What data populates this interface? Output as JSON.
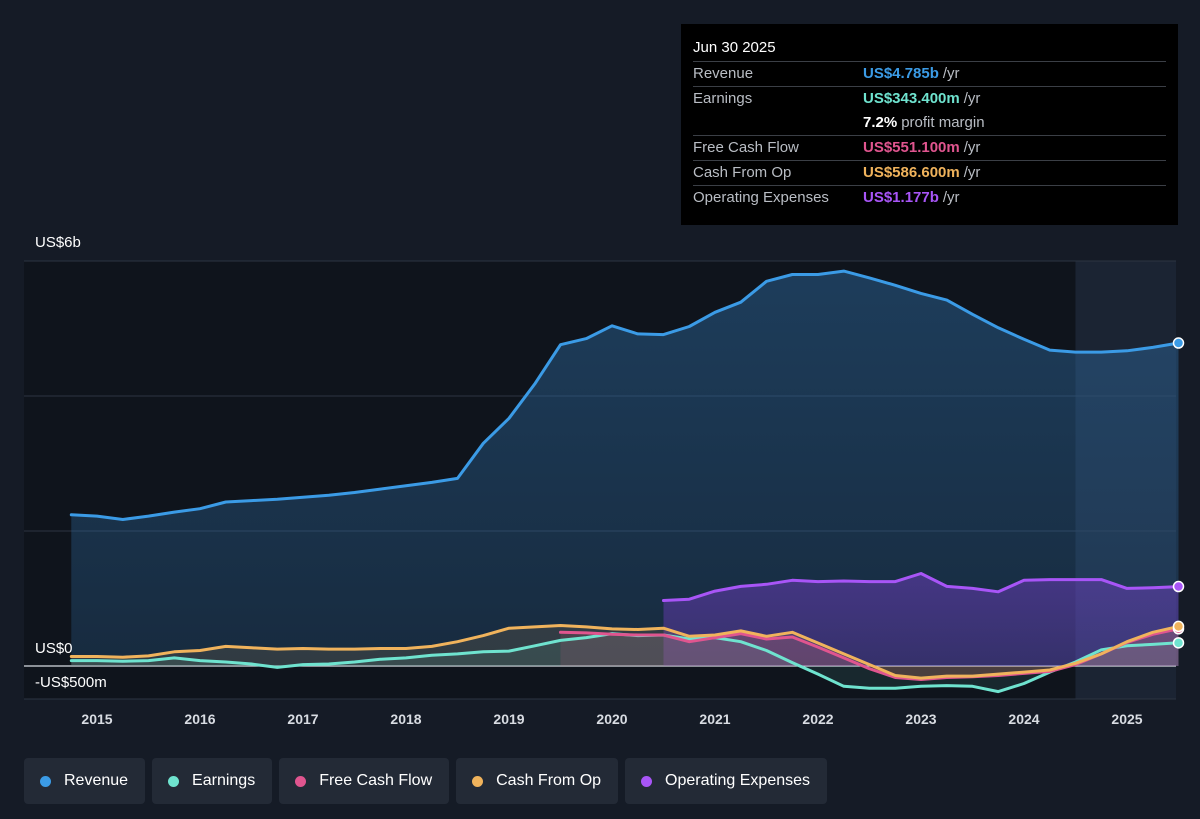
{
  "tooltip": {
    "date": "Jun 30 2025",
    "rows": [
      {
        "label": "Revenue",
        "value": "US$4.785b",
        "unit": "/yr",
        "color": "#3b9be6"
      },
      {
        "label": "Earnings",
        "value": "US$343.400m",
        "unit": "/yr",
        "color": "#6fe3cf"
      },
      {
        "label": "",
        "value": "7.2%",
        "unit": "profit margin",
        "color": "#ffffff"
      },
      {
        "label": "Free Cash Flow",
        "value": "US$551.100m",
        "unit": "/yr",
        "color": "#e0558f"
      },
      {
        "label": "Cash From Op",
        "value": "US$586.600m",
        "unit": "/yr",
        "color": "#f0b35c"
      },
      {
        "label": "Operating Expenses",
        "value": "US$1.177b",
        "unit": "/yr",
        "color": "#a855f7"
      }
    ]
  },
  "legend": [
    {
      "label": "Revenue",
      "color": "#3b9be6"
    },
    {
      "label": "Earnings",
      "color": "#6fe3cf"
    },
    {
      "label": "Free Cash Flow",
      "color": "#e0558f"
    },
    {
      "label": "Cash From Op",
      "color": "#f0b35c"
    },
    {
      "label": "Operating Expenses",
      "color": "#a855f7"
    }
  ],
  "chart_data": {
    "type": "area",
    "y_unit_labels": {
      "top": "US$6b",
      "zero": "US$0",
      "bottom": "-US$500m"
    },
    "ylim": [
      -500,
      6000
    ],
    "xlim": [
      2014.5,
      2025.5
    ],
    "x_tick_labels": [
      "2015",
      "2016",
      "2017",
      "2018",
      "2019",
      "2020",
      "2021",
      "2022",
      "2023",
      "2024",
      "2025"
    ],
    "x_ticks": [
      2015,
      2016,
      2017,
      2018,
      2019,
      2020,
      2021,
      2022,
      2023,
      2024,
      2025
    ],
    "gridlines": [
      6000,
      4000,
      2000,
      0
    ],
    "forecast_start": 2024.5,
    "series": [
      {
        "name": "Revenue",
        "color": "#3b9be6",
        "points": [
          [
            2014.75,
            2240
          ],
          [
            2015.0,
            2220
          ],
          [
            2015.25,
            2170
          ],
          [
            2015.5,
            2220
          ],
          [
            2015.75,
            2280
          ],
          [
            2016.0,
            2330
          ],
          [
            2016.25,
            2430
          ],
          [
            2016.5,
            2450
          ],
          [
            2016.75,
            2470
          ],
          [
            2017.0,
            2500
          ],
          [
            2017.25,
            2530
          ],
          [
            2017.5,
            2570
          ],
          [
            2017.75,
            2620
          ],
          [
            2018.0,
            2670
          ],
          [
            2018.25,
            2720
          ],
          [
            2018.5,
            2780
          ],
          [
            2018.75,
            3300
          ],
          [
            2019.0,
            3670
          ],
          [
            2019.25,
            4180
          ],
          [
            2019.5,
            4760
          ],
          [
            2019.75,
            4850
          ],
          [
            2020.0,
            5040
          ],
          [
            2020.25,
            4920
          ],
          [
            2020.5,
            4910
          ],
          [
            2020.75,
            5030
          ],
          [
            2021.0,
            5240
          ],
          [
            2021.25,
            5390
          ],
          [
            2021.5,
            5700
          ],
          [
            2021.75,
            5800
          ],
          [
            2022.0,
            5800
          ],
          [
            2022.25,
            5850
          ],
          [
            2022.5,
            5750
          ],
          [
            2022.75,
            5640
          ],
          [
            2023.0,
            5520
          ],
          [
            2023.25,
            5420
          ],
          [
            2023.5,
            5210
          ],
          [
            2023.75,
            5010
          ],
          [
            2024.0,
            4840
          ],
          [
            2024.25,
            4680
          ],
          [
            2024.5,
            4650
          ],
          [
            2024.75,
            4650
          ],
          [
            2025.0,
            4670
          ],
          [
            2025.25,
            4720
          ],
          [
            2025.5,
            4785
          ]
        ]
      },
      {
        "name": "Earnings",
        "color": "#6fe3cf",
        "points": [
          [
            2014.75,
            80
          ],
          [
            2015.0,
            80
          ],
          [
            2015.25,
            70
          ],
          [
            2015.5,
            80
          ],
          [
            2015.75,
            120
          ],
          [
            2016.0,
            80
          ],
          [
            2016.25,
            60
          ],
          [
            2016.5,
            30
          ],
          [
            2016.75,
            -20
          ],
          [
            2017.0,
            20
          ],
          [
            2017.25,
            30
          ],
          [
            2017.5,
            60
          ],
          [
            2017.75,
            100
          ],
          [
            2018.0,
            120
          ],
          [
            2018.25,
            160
          ],
          [
            2018.5,
            180
          ],
          [
            2018.75,
            210
          ],
          [
            2019.0,
            220
          ],
          [
            2019.25,
            300
          ],
          [
            2019.5,
            380
          ],
          [
            2019.75,
            420
          ],
          [
            2020.0,
            480
          ],
          [
            2020.25,
            450
          ],
          [
            2020.5,
            460
          ],
          [
            2020.75,
            400
          ],
          [
            2021.0,
            420
          ],
          [
            2021.25,
            360
          ],
          [
            2021.5,
            230
          ],
          [
            2021.75,
            50
          ],
          [
            2022.0,
            -120
          ],
          [
            2022.25,
            -300
          ],
          [
            2022.5,
            -330
          ],
          [
            2022.75,
            -330
          ],
          [
            2023.0,
            -300
          ],
          [
            2023.25,
            -290
          ],
          [
            2023.5,
            -300
          ],
          [
            2023.75,
            -380
          ],
          [
            2024.0,
            -260
          ],
          [
            2024.25,
            -90
          ],
          [
            2024.5,
            60
          ],
          [
            2024.75,
            240
          ],
          [
            2025.0,
            300
          ],
          [
            2025.25,
            320
          ],
          [
            2025.5,
            343.4
          ]
        ]
      },
      {
        "name": "Free Cash Flow",
        "color": "#e0558f",
        "points": [
          [
            2019.5,
            500
          ],
          [
            2019.75,
            490
          ],
          [
            2020.0,
            470
          ],
          [
            2020.25,
            460
          ],
          [
            2020.5,
            460
          ],
          [
            2020.75,
            360
          ],
          [
            2021.0,
            420
          ],
          [
            2021.25,
            480
          ],
          [
            2021.5,
            400
          ],
          [
            2021.75,
            430
          ],
          [
            2022.0,
            280
          ],
          [
            2022.25,
            120
          ],
          [
            2022.5,
            -40
          ],
          [
            2022.75,
            -170
          ],
          [
            2023.0,
            -200
          ],
          [
            2023.25,
            -170
          ],
          [
            2023.5,
            -160
          ],
          [
            2023.75,
            -140
          ],
          [
            2024.0,
            -110
          ],
          [
            2024.25,
            -80
          ],
          [
            2024.5,
            20
          ],
          [
            2024.75,
            180
          ],
          [
            2025.0,
            350
          ],
          [
            2025.25,
            470
          ],
          [
            2025.5,
            551.1
          ]
        ]
      },
      {
        "name": "Cash From Op",
        "color": "#f0b35c",
        "points": [
          [
            2014.75,
            140
          ],
          [
            2015.0,
            140
          ],
          [
            2015.25,
            130
          ],
          [
            2015.5,
            150
          ],
          [
            2015.75,
            210
          ],
          [
            2016.0,
            230
          ],
          [
            2016.25,
            290
          ],
          [
            2016.5,
            270
          ],
          [
            2016.75,
            250
          ],
          [
            2017.0,
            260
          ],
          [
            2017.25,
            250
          ],
          [
            2017.5,
            250
          ],
          [
            2017.75,
            260
          ],
          [
            2018.0,
            260
          ],
          [
            2018.25,
            290
          ],
          [
            2018.5,
            360
          ],
          [
            2018.75,
            450
          ],
          [
            2019.0,
            560
          ],
          [
            2019.25,
            580
          ],
          [
            2019.5,
            600
          ],
          [
            2019.75,
            580
          ],
          [
            2020.0,
            550
          ],
          [
            2020.25,
            540
          ],
          [
            2020.5,
            560
          ],
          [
            2020.75,
            440
          ],
          [
            2021.0,
            460
          ],
          [
            2021.25,
            520
          ],
          [
            2021.5,
            440
          ],
          [
            2021.75,
            500
          ],
          [
            2022.0,
            340
          ],
          [
            2022.25,
            180
          ],
          [
            2022.5,
            20
          ],
          [
            2022.75,
            -140
          ],
          [
            2023.0,
            -180
          ],
          [
            2023.25,
            -150
          ],
          [
            2023.5,
            -150
          ],
          [
            2023.75,
            -120
          ],
          [
            2024.0,
            -90
          ],
          [
            2024.25,
            -60
          ],
          [
            2024.5,
            40
          ],
          [
            2024.75,
            180
          ],
          [
            2025.0,
            360
          ],
          [
            2025.25,
            500
          ],
          [
            2025.5,
            586.6
          ]
        ]
      },
      {
        "name": "Operating Expenses",
        "color": "#a855f7",
        "points": [
          [
            2020.5,
            970
          ],
          [
            2020.75,
            990
          ],
          [
            2021.0,
            1110
          ],
          [
            2021.25,
            1180
          ],
          [
            2021.5,
            1210
          ],
          [
            2021.75,
            1270
          ],
          [
            2022.0,
            1250
          ],
          [
            2022.25,
            1260
          ],
          [
            2022.5,
            1250
          ],
          [
            2022.75,
            1250
          ],
          [
            2023.0,
            1370
          ],
          [
            2023.25,
            1180
          ],
          [
            2023.5,
            1150
          ],
          [
            2023.75,
            1100
          ],
          [
            2024.0,
            1270
          ],
          [
            2024.25,
            1280
          ],
          [
            2024.5,
            1280
          ],
          [
            2024.75,
            1280
          ],
          [
            2025.0,
            1150
          ],
          [
            2025.25,
            1160
          ],
          [
            2025.5,
            1177
          ]
        ]
      }
    ]
  }
}
